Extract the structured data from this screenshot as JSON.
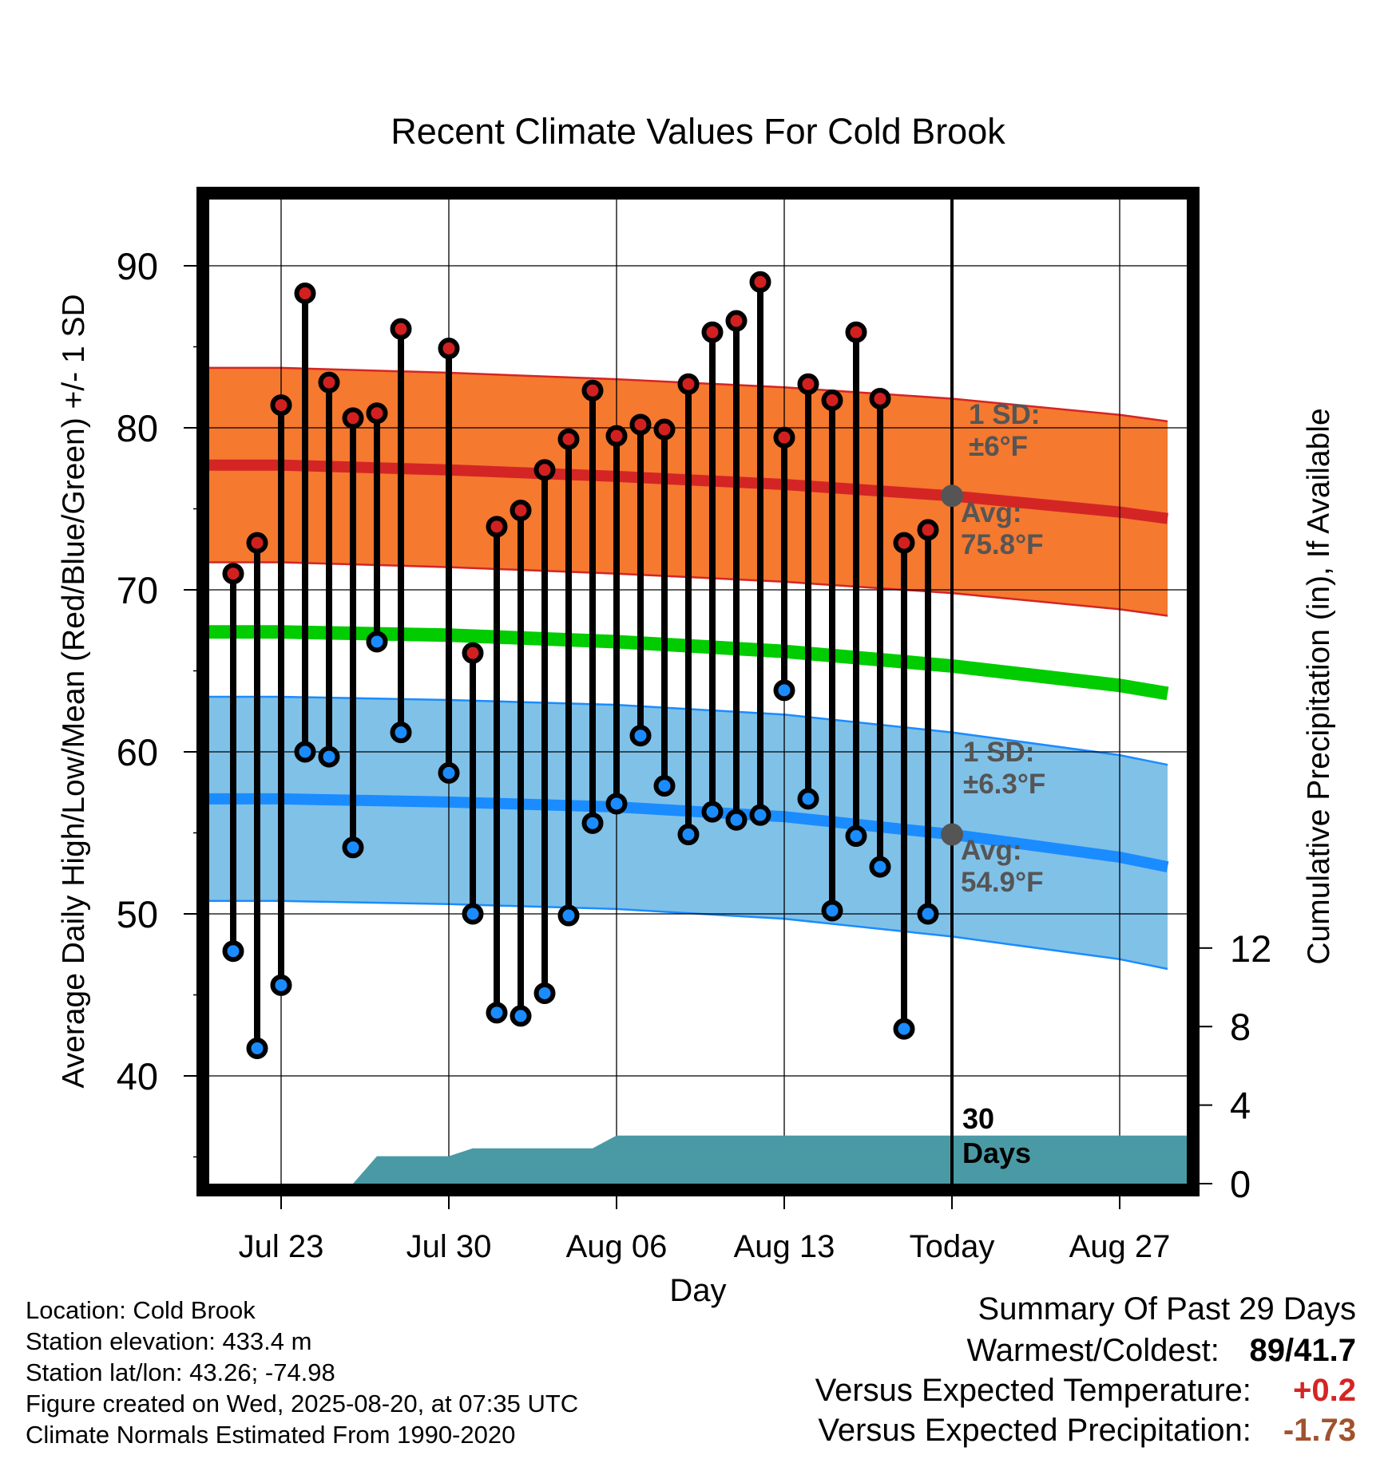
{
  "title": "Recent Climate Values For Cold Brook",
  "chart_data": {
    "type": "line",
    "title": "Recent Climate Values For Cold Brook",
    "xlabel": "Day",
    "ylabel": "Average Daily High/Low/Mean (Red/Blue/Green) +/- 1 SD",
    "y2label": "Cumulative Precipitation (in), If Available",
    "ylim": [
      34,
      94
    ],
    "y2lim": [
      0,
      30
    ],
    "grid": true,
    "xticks": [
      "Jul 23",
      "Jul 30",
      "Aug 06",
      "Aug 13",
      "Today",
      "Aug 27"
    ],
    "yticks": [
      "40",
      "50",
      "60",
      "70",
      "80",
      "90"
    ],
    "y2ticks": [
      "0",
      "4",
      "8",
      "12"
    ],
    "x_start": "2025-07-20",
    "x_end": "2025-08-29",
    "today": "2025-08-20",
    "normals": {
      "dates": [
        "2025-07-20",
        "2025-07-23",
        "2025-07-30",
        "2025-08-06",
        "2025-08-13",
        "2025-08-20",
        "2025-08-27",
        "2025-08-29"
      ],
      "high_avg": [
        77.7,
        77.7,
        77.4,
        77.0,
        76.5,
        75.8,
        74.8,
        74.4
      ],
      "high_sd": 6,
      "low_avg": [
        57.1,
        57.1,
        56.9,
        56.6,
        56.0,
        54.9,
        53.5,
        52.9
      ],
      "low_sd": 6.3,
      "mean_avg": [
        67.4,
        67.4,
        67.2,
        66.8,
        66.2,
        65.3,
        64.1,
        63.6
      ]
    },
    "series": [
      {
        "name": "High",
        "color": "#d22020",
        "x": [
          "2025-07-21",
          "2025-07-22",
          "2025-07-23",
          "2025-07-24",
          "2025-07-25",
          "2025-07-26",
          "2025-07-27",
          "2025-07-28",
          "2025-07-30",
          "2025-07-31",
          "2025-08-01",
          "2025-08-02",
          "2025-08-03",
          "2025-08-04",
          "2025-08-05",
          "2025-08-06",
          "2025-08-07",
          "2025-08-08",
          "2025-08-09",
          "2025-08-10",
          "2025-08-11",
          "2025-08-12",
          "2025-08-13",
          "2025-08-14",
          "2025-08-15",
          "2025-08-16",
          "2025-08-17",
          "2025-08-18",
          "2025-08-19"
        ],
        "values": [
          71,
          72.9,
          81.4,
          88.3,
          82.8,
          80.6,
          80.9,
          86.1,
          84.9,
          66.1,
          73.9,
          74.9,
          77.4,
          79.3,
          82.3,
          79.5,
          80.2,
          79.9,
          82.7,
          85.9,
          86.6,
          89.0,
          79.4,
          82.7,
          81.7,
          85.9,
          81.8,
          72.9,
          73.7
        ]
      },
      {
        "name": "Low",
        "color": "#1a8cff",
        "x": [
          "2025-07-21",
          "2025-07-22",
          "2025-07-23",
          "2025-07-24",
          "2025-07-25",
          "2025-07-26",
          "2025-07-27",
          "2025-07-28",
          "2025-07-30",
          "2025-07-31",
          "2025-08-01",
          "2025-08-02",
          "2025-08-03",
          "2025-08-04",
          "2025-08-05",
          "2025-08-06",
          "2025-08-07",
          "2025-08-08",
          "2025-08-09",
          "2025-08-10",
          "2025-08-11",
          "2025-08-12",
          "2025-08-13",
          "2025-08-14",
          "2025-08-15",
          "2025-08-16",
          "2025-08-17",
          "2025-08-18",
          "2025-08-19"
        ],
        "values": [
          47.7,
          41.7,
          45.6,
          60.0,
          59.7,
          54.1,
          66.8,
          61.2,
          58.7,
          50.0,
          43.9,
          43.7,
          45.1,
          49.9,
          55.6,
          56.8,
          61.0,
          57.9,
          54.9,
          56.3,
          55.8,
          56.1,
          63.8,
          57.1,
          50.2,
          54.8,
          52.9,
          42.9,
          50.0
        ]
      },
      {
        "name": "Cumulative Precipitation",
        "color": "#4a9aa5",
        "x": [
          "2025-07-26",
          "2025-07-27",
          "2025-07-30",
          "2025-07-31",
          "2025-08-05",
          "2025-08-06",
          "2025-08-20"
        ],
        "values": [
          0,
          1.4,
          1.4,
          1.8,
          1.8,
          2.45,
          2.45
        ]
      }
    ]
  },
  "annotations": {
    "high_sd_label": [
      "1 SD:",
      "±6°F"
    ],
    "high_avg_label": [
      "Avg:",
      "75.8°F"
    ],
    "low_sd_label": [
      "1 SD:",
      "±6.3°F"
    ],
    "low_avg_label": [
      "Avg:",
      "54.9°F"
    ],
    "precip_days_label": [
      "30",
      "Days"
    ]
  },
  "colors": {
    "high_band": "#f5792f",
    "high_line": "#d42525",
    "low_band": "#80c1e8",
    "low_line": "#1a8cff",
    "mean_line": "#00cc00",
    "precip_fill": "#4a9aa5",
    "marker_gray": "#555555",
    "summary_warm": "#d42525",
    "summary_precip": "#a0522d"
  },
  "info": {
    "location": "Location: Cold Brook",
    "elevation": "Station elevation: 433.4 m",
    "latlon": "Station lat/lon: 43.26; -74.98",
    "created": "Figure created on Wed, 2025-08-20, at 07:35 UTC",
    "normals": "Climate Normals Estimated From 1990-2020"
  },
  "summary": {
    "title": "Summary Of Past 29 Days",
    "warmest_coldest_label": "Warmest/Coldest:",
    "warmest_coldest_value": "89/41.7",
    "temp_label": "Versus Expected Temperature:",
    "temp_value": "+0.2",
    "precip_label": "Versus Expected Precipitation:",
    "precip_value": "-1.73"
  }
}
